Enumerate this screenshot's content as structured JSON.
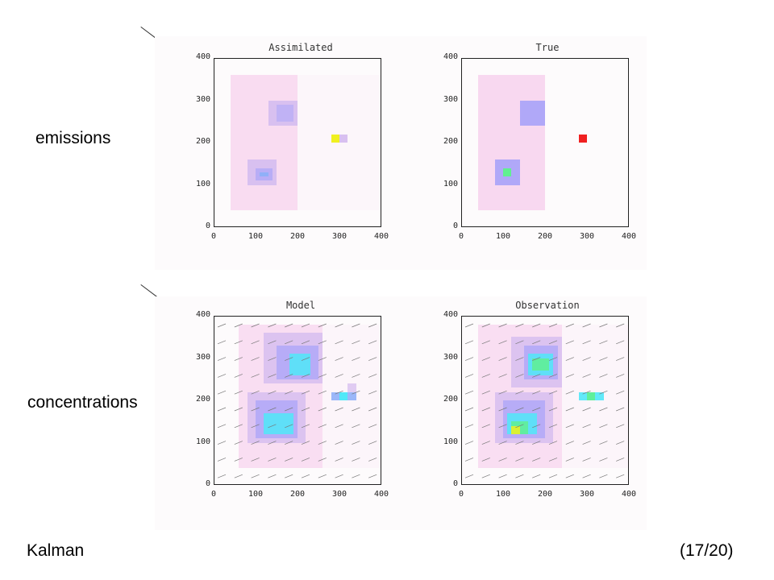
{
  "labels": {
    "emissions": "emissions",
    "concentrations": "concentrations",
    "method": "Kalman",
    "page": "(17/20)"
  },
  "panels": [
    {
      "id": "assimilated",
      "title": "Assimilated"
    },
    {
      "id": "true",
      "title": "True"
    },
    {
      "id": "model",
      "title": "Model"
    },
    {
      "id": "observation",
      "title": "Observation"
    }
  ],
  "axes": {
    "x_ticks": [
      "0",
      "100",
      "200",
      "300",
      "400"
    ],
    "y_ticks": [
      "0",
      "100",
      "200",
      "300",
      "400"
    ],
    "range": [
      0,
      400
    ]
  },
  "colors": {
    "pink": "#f8d8f0",
    "lavender": "#d8c0f0",
    "violet": "#b0a8f8",
    "blue": "#90b0f8",
    "cyan": "#50e8f8",
    "green": "#60f090",
    "yellow": "#f0f020",
    "red": "#f02020"
  }
}
